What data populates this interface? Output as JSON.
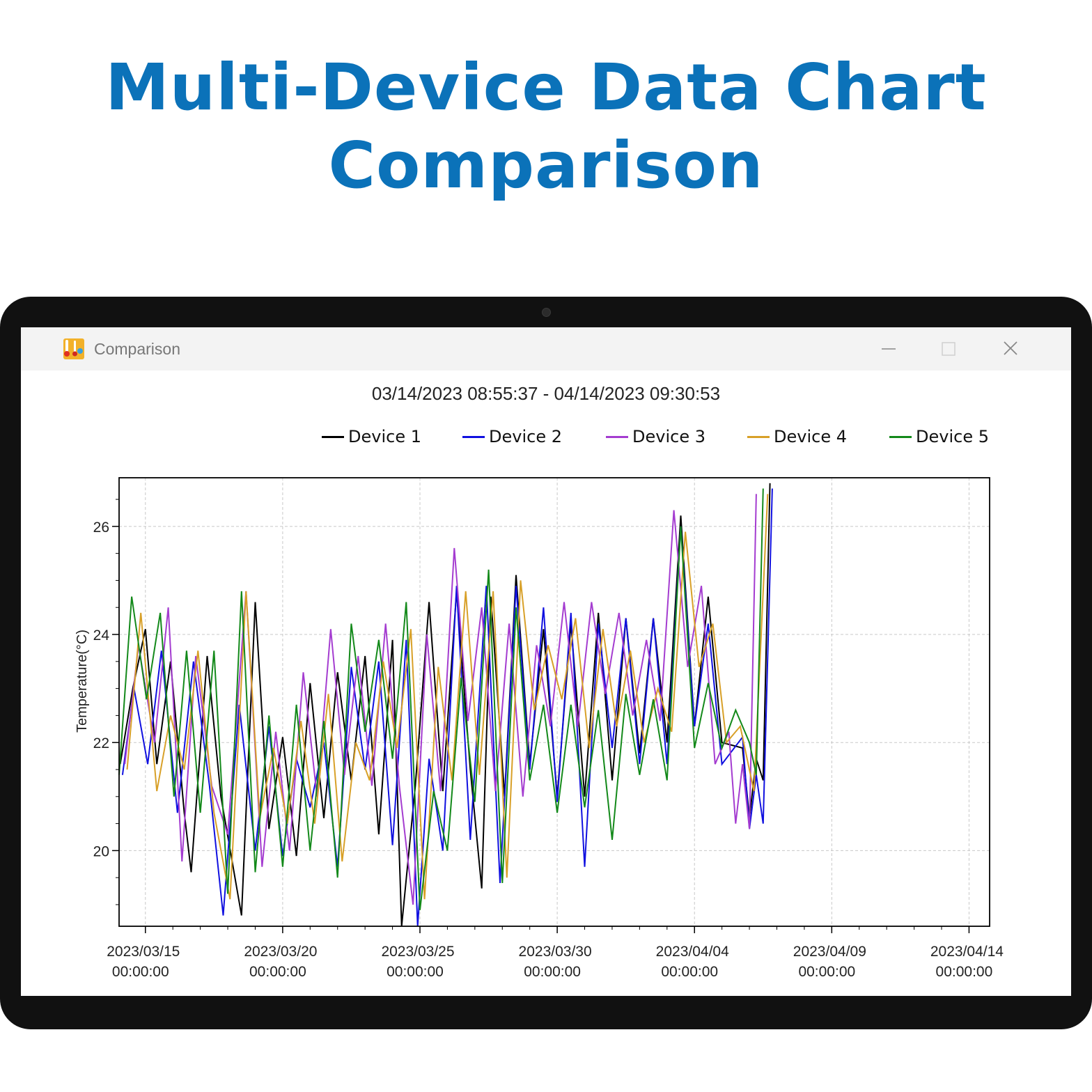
{
  "banner": {
    "title_line1": "Multi-Device Data Chart",
    "title_line2": "Comparison"
  },
  "window": {
    "title": "Comparison",
    "app_icon": "thermometer-app-icon",
    "controls": [
      "minimize-icon",
      "maximize-icon",
      "close-icon"
    ]
  },
  "chart_data": {
    "type": "line",
    "title": "03/14/2023 08:55:37 - 04/14/2023 09:30:53",
    "xlabel": "",
    "ylabel": "Temperature(°C)",
    "xlim": [
      "2023-03-14 01:00",
      "2023-04-14 18:00"
    ],
    "ylim": [
      18.6,
      26.9
    ],
    "grid": true,
    "legend_position": "top",
    "x_ticks": [
      {
        "date": "2023/03/15",
        "time": "00:00:00"
      },
      {
        "date": "2023/03/20",
        "time": "00:00:00"
      },
      {
        "date": "2023/03/25",
        "time": "00:00:00"
      },
      {
        "date": "2023/03/30",
        "time": "00:00:00"
      },
      {
        "date": "2023/04/04",
        "time": "00:00:00"
      },
      {
        "date": "2023/04/09",
        "time": "00:00:00"
      },
      {
        "date": "2023/04/14",
        "time": "00:00:00"
      }
    ],
    "y_ticks": [
      20,
      22,
      24,
      26
    ],
    "series": [
      {
        "name": "Device 1",
        "color": "#000000",
        "points": [
          [
            "2023-03-14 02:00",
            21.6
          ],
          [
            "2023-03-14 13:00",
            23.0
          ],
          [
            "2023-03-15 00:00",
            24.1
          ],
          [
            "2023-03-15 10:00",
            21.6
          ],
          [
            "2023-03-15 22:00",
            23.5
          ],
          [
            "2023-03-16 10:00",
            20.7
          ],
          [
            "2023-03-16 16:00",
            19.6
          ],
          [
            "2023-03-17 06:00",
            23.6
          ],
          [
            "2023-03-17 18:00",
            21.0
          ],
          [
            "2023-03-18 12:00",
            18.8
          ],
          [
            "2023-03-19 00:00",
            24.6
          ],
          [
            "2023-03-19 12:00",
            20.4
          ],
          [
            "2023-03-20 00:00",
            22.1
          ],
          [
            "2023-03-20 12:00",
            19.9
          ],
          [
            "2023-03-21 00:00",
            23.1
          ],
          [
            "2023-03-21 12:00",
            20.6
          ],
          [
            "2023-03-22 00:00",
            23.3
          ],
          [
            "2023-03-22 12:00",
            21.3
          ],
          [
            "2023-03-23 00:00",
            23.6
          ],
          [
            "2023-03-23 12:00",
            20.3
          ],
          [
            "2023-03-24 00:00",
            23.9
          ],
          [
            "2023-03-24 08:00",
            18.6
          ],
          [
            "2023-03-24 20:00",
            21.2
          ],
          [
            "2023-03-25 08:00",
            24.6
          ],
          [
            "2023-03-25 20:00",
            21.1
          ],
          [
            "2023-03-26 08:00",
            24.8
          ],
          [
            "2023-03-26 20:00",
            21.5
          ],
          [
            "2023-03-27 06:00",
            19.3
          ],
          [
            "2023-03-27 14:00",
            24.7
          ],
          [
            "2023-03-28 02:00",
            21.0
          ],
          [
            "2023-03-28 12:00",
            25.1
          ],
          [
            "2023-03-29 00:00",
            21.6
          ],
          [
            "2023-03-29 12:00",
            24.1
          ],
          [
            "2023-03-30 00:00",
            21.0
          ],
          [
            "2023-03-30 12:00",
            24.2
          ],
          [
            "2023-03-31 00:00",
            21.0
          ],
          [
            "2023-03-31 12:00",
            24.4
          ],
          [
            "2023-04-01 00:00",
            21.3
          ],
          [
            "2023-04-01 12:00",
            24.3
          ],
          [
            "2023-04-02 00:00",
            21.8
          ],
          [
            "2023-04-02 12:00",
            24.3
          ],
          [
            "2023-04-03 00:00",
            22.0
          ],
          [
            "2023-04-03 12:00",
            26.2
          ],
          [
            "2023-04-04 00:00",
            22.3
          ],
          [
            "2023-04-04 12:00",
            24.7
          ],
          [
            "2023-04-05 00:00",
            22.0
          ],
          [
            "2023-04-05 18:00",
            21.9
          ],
          [
            "2023-04-06 00:00",
            20.6
          ],
          [
            "2023-04-06 06:00",
            21.7
          ],
          [
            "2023-04-06 12:00",
            21.3
          ],
          [
            "2023-04-06 18:00",
            26.8
          ]
        ]
      },
      {
        "name": "Device 2",
        "color": "#1010e0",
        "points": [
          [
            "2023-03-14 04:00",
            21.4
          ],
          [
            "2023-03-14 14:00",
            23.0
          ],
          [
            "2023-03-15 02:00",
            21.6
          ],
          [
            "2023-03-15 14:00",
            23.7
          ],
          [
            "2023-03-16 04:00",
            20.7
          ],
          [
            "2023-03-16 18:00",
            23.5
          ],
          [
            "2023-03-17 08:00",
            21.2
          ],
          [
            "2023-03-17 20:00",
            18.8
          ],
          [
            "2023-03-18 10:00",
            22.7
          ],
          [
            "2023-03-19 00:00",
            20.0
          ],
          [
            "2023-03-19 12:00",
            22.3
          ],
          [
            "2023-03-20 00:00",
            19.9
          ],
          [
            "2023-03-20 12:00",
            21.7
          ],
          [
            "2023-03-21 00:00",
            20.8
          ],
          [
            "2023-03-21 12:00",
            22.0
          ],
          [
            "2023-03-22 00:00",
            19.7
          ],
          [
            "2023-03-22 12:00",
            23.4
          ],
          [
            "2023-03-23 00:00",
            21.5
          ],
          [
            "2023-03-23 12:00",
            23.5
          ],
          [
            "2023-03-24 00:00",
            20.1
          ],
          [
            "2023-03-24 12:00",
            23.9
          ],
          [
            "2023-03-24 22:00",
            18.6
          ],
          [
            "2023-03-25 08:00",
            21.7
          ],
          [
            "2023-03-25 20:00",
            20.0
          ],
          [
            "2023-03-26 08:00",
            24.9
          ],
          [
            "2023-03-26 20:00",
            20.2
          ],
          [
            "2023-03-27 10:00",
            24.9
          ],
          [
            "2023-03-27 22:00",
            19.4
          ],
          [
            "2023-03-28 12:00",
            24.9
          ],
          [
            "2023-03-29 00:00",
            21.5
          ],
          [
            "2023-03-29 12:00",
            24.5
          ],
          [
            "2023-03-30 00:00",
            20.9
          ],
          [
            "2023-03-30 12:00",
            24.4
          ],
          [
            "2023-03-31 00:00",
            19.7
          ],
          [
            "2023-03-31 12:00",
            24.2
          ],
          [
            "2023-04-01 00:00",
            21.9
          ],
          [
            "2023-04-01 12:00",
            24.3
          ],
          [
            "2023-04-02 00:00",
            21.6
          ],
          [
            "2023-04-02 12:00",
            24.3
          ],
          [
            "2023-04-03 00:00",
            21.6
          ],
          [
            "2023-04-03 12:00",
            26.0
          ],
          [
            "2023-04-04 00:00",
            22.3
          ],
          [
            "2023-04-04 12:00",
            24.2
          ],
          [
            "2023-04-05 00:00",
            21.6
          ],
          [
            "2023-04-05 18:00",
            22.1
          ],
          [
            "2023-04-06 00:00",
            20.4
          ],
          [
            "2023-04-06 06:00",
            21.4
          ],
          [
            "2023-04-06 12:00",
            20.5
          ],
          [
            "2023-04-06 20:00",
            26.7
          ]
        ]
      },
      {
        "name": "Device 3",
        "color": "#a43cd0",
        "points": [
          [
            "2023-03-14 06:00",
            21.6
          ],
          [
            "2023-03-14 18:00",
            23.8
          ],
          [
            "2023-03-15 08:00",
            22.0
          ],
          [
            "2023-03-15 20:00",
            24.5
          ],
          [
            "2023-03-16 08:00",
            19.8
          ],
          [
            "2023-03-16 20:00",
            23.6
          ],
          [
            "2023-03-17 10:00",
            21.2
          ],
          [
            "2023-03-18 00:00",
            20.3
          ],
          [
            "2023-03-18 16:00",
            24.8
          ],
          [
            "2023-03-19 06:00",
            19.7
          ],
          [
            "2023-03-19 18:00",
            22.2
          ],
          [
            "2023-03-20 06:00",
            20.0
          ],
          [
            "2023-03-20 18:00",
            23.3
          ],
          [
            "2023-03-21 06:00",
            21.0
          ],
          [
            "2023-03-21 18:00",
            24.1
          ],
          [
            "2023-03-22 06:00",
            21.4
          ],
          [
            "2023-03-22 18:00",
            23.6
          ],
          [
            "2023-03-23 06:00",
            21.2
          ],
          [
            "2023-03-23 18:00",
            24.2
          ],
          [
            "2023-03-24 06:00",
            21.2
          ],
          [
            "2023-03-24 18:00",
            19.0
          ],
          [
            "2023-03-25 06:00",
            24.0
          ],
          [
            "2023-03-25 18:00",
            21.1
          ],
          [
            "2023-03-26 06:00",
            25.6
          ],
          [
            "2023-03-26 18:00",
            22.4
          ],
          [
            "2023-03-27 06:00",
            24.5
          ],
          [
            "2023-03-27 18:00",
            21.1
          ],
          [
            "2023-03-28 06:00",
            24.2
          ],
          [
            "2023-03-28 18:00",
            21.0
          ],
          [
            "2023-03-29 06:00",
            23.8
          ],
          [
            "2023-03-29 18:00",
            22.3
          ],
          [
            "2023-03-30 06:00",
            24.6
          ],
          [
            "2023-03-30 18:00",
            22.3
          ],
          [
            "2023-03-31 06:00",
            24.6
          ],
          [
            "2023-03-31 18:00",
            22.9
          ],
          [
            "2023-04-01 06:00",
            24.4
          ],
          [
            "2023-04-01 18:00",
            22.5
          ],
          [
            "2023-04-02 06:00",
            23.9
          ],
          [
            "2023-04-02 18:00",
            22.4
          ],
          [
            "2023-04-03 06:00",
            26.3
          ],
          [
            "2023-04-03 18:00",
            23.4
          ],
          [
            "2023-04-04 06:00",
            24.9
          ],
          [
            "2023-04-04 18:00",
            21.6
          ],
          [
            "2023-04-05 06:00",
            22.2
          ],
          [
            "2023-04-05 12:00",
            20.5
          ],
          [
            "2023-04-05 18:00",
            21.6
          ],
          [
            "2023-04-06 00:00",
            20.4
          ],
          [
            "2023-04-06 06:00",
            26.6
          ]
        ]
      },
      {
        "name": "Device 4",
        "color": "#d8a028",
        "points": [
          [
            "2023-03-14 08:00",
            21.5
          ],
          [
            "2023-03-14 20:00",
            24.4
          ],
          [
            "2023-03-15 10:00",
            21.1
          ],
          [
            "2023-03-15 22:00",
            22.5
          ],
          [
            "2023-03-16 10:00",
            21.5
          ],
          [
            "2023-03-16 22:00",
            23.7
          ],
          [
            "2023-03-17 12:00",
            20.7
          ],
          [
            "2023-03-18 02:00",
            19.1
          ],
          [
            "2023-03-18 16:00",
            24.8
          ],
          [
            "2023-03-19 04:00",
            20.6
          ],
          [
            "2023-03-19 16:00",
            21.9
          ],
          [
            "2023-03-20 04:00",
            20.5
          ],
          [
            "2023-03-20 16:00",
            22.4
          ],
          [
            "2023-03-21 04:00",
            20.5
          ],
          [
            "2023-03-21 16:00",
            22.9
          ],
          [
            "2023-03-22 04:00",
            19.8
          ],
          [
            "2023-03-22 16:00",
            22.0
          ],
          [
            "2023-03-23 04:00",
            21.3
          ],
          [
            "2023-03-23 16:00",
            23.5
          ],
          [
            "2023-03-24 04:00",
            21.9
          ],
          [
            "2023-03-24 16:00",
            24.1
          ],
          [
            "2023-03-25 04:00",
            19.1
          ],
          [
            "2023-03-25 16:00",
            23.4
          ],
          [
            "2023-03-26 04:00",
            21.3
          ],
          [
            "2023-03-26 16:00",
            24.8
          ],
          [
            "2023-03-27 04:00",
            21.4
          ],
          [
            "2023-03-27 16:00",
            24.8
          ],
          [
            "2023-03-28 04:00",
            19.5
          ],
          [
            "2023-03-28 16:00",
            25.0
          ],
          [
            "2023-03-29 04:00",
            22.6
          ],
          [
            "2023-03-29 16:00",
            23.8
          ],
          [
            "2023-03-30 04:00",
            22.8
          ],
          [
            "2023-03-30 16:00",
            24.3
          ],
          [
            "2023-03-31 04:00",
            21.9
          ],
          [
            "2023-03-31 16:00",
            24.1
          ],
          [
            "2023-04-01 04:00",
            22.3
          ],
          [
            "2023-04-01 16:00",
            23.7
          ],
          [
            "2023-04-02 04:00",
            22.0
          ],
          [
            "2023-04-02 16:00",
            23.0
          ],
          [
            "2023-04-03 04:00",
            22.2
          ],
          [
            "2023-04-03 16:00",
            25.9
          ],
          [
            "2023-04-04 04:00",
            23.4
          ],
          [
            "2023-04-04 16:00",
            24.2
          ],
          [
            "2023-04-05 04:00",
            22.0
          ],
          [
            "2023-04-05 16:00",
            22.3
          ],
          [
            "2023-04-06 04:00",
            21.1
          ],
          [
            "2023-04-06 16:00",
            26.6
          ]
        ]
      },
      {
        "name": "Device 5",
        "color": "#13891a",
        "points": [
          [
            "2023-03-14 01:00",
            21.4
          ],
          [
            "2023-03-14 12:00",
            24.7
          ],
          [
            "2023-03-15 01:00",
            22.8
          ],
          [
            "2023-03-15 13:00",
            24.4
          ],
          [
            "2023-03-16 01:00",
            21.0
          ],
          [
            "2023-03-16 12:00",
            23.7
          ],
          [
            "2023-03-17 00:00",
            20.7
          ],
          [
            "2023-03-17 12:00",
            23.7
          ],
          [
            "2023-03-18 00:00",
            19.2
          ],
          [
            "2023-03-18 12:00",
            24.8
          ],
          [
            "2023-03-19 00:00",
            19.6
          ],
          [
            "2023-03-19 12:00",
            22.5
          ],
          [
            "2023-03-20 00:00",
            19.7
          ],
          [
            "2023-03-20 12:00",
            22.7
          ],
          [
            "2023-03-21 00:00",
            20.0
          ],
          [
            "2023-03-21 12:00",
            22.4
          ],
          [
            "2023-03-22 00:00",
            19.5
          ],
          [
            "2023-03-22 12:00",
            24.2
          ],
          [
            "2023-03-23 00:00",
            22.2
          ],
          [
            "2023-03-23 12:00",
            23.9
          ],
          [
            "2023-03-24 00:00",
            21.7
          ],
          [
            "2023-03-24 12:00",
            24.6
          ],
          [
            "2023-03-25 00:00",
            18.9
          ],
          [
            "2023-03-25 12:00",
            21.1
          ],
          [
            "2023-03-26 00:00",
            20.0
          ],
          [
            "2023-03-26 12:00",
            23.2
          ],
          [
            "2023-03-27 00:00",
            20.9
          ],
          [
            "2023-03-27 12:00",
            25.2
          ],
          [
            "2023-03-28 00:00",
            19.4
          ],
          [
            "2023-03-28 12:00",
            24.5
          ],
          [
            "2023-03-29 00:00",
            21.3
          ],
          [
            "2023-03-29 12:00",
            22.7
          ],
          [
            "2023-03-30 00:00",
            20.7
          ],
          [
            "2023-03-30 12:00",
            22.7
          ],
          [
            "2023-03-31 00:00",
            20.8
          ],
          [
            "2023-03-31 12:00",
            22.6
          ],
          [
            "2023-04-01 00:00",
            20.2
          ],
          [
            "2023-04-01 12:00",
            22.9
          ],
          [
            "2023-04-02 00:00",
            21.4
          ],
          [
            "2023-04-02 12:00",
            22.8
          ],
          [
            "2023-04-03 00:00",
            21.3
          ],
          [
            "2023-04-03 12:00",
            26.0
          ],
          [
            "2023-04-04 00:00",
            21.9
          ],
          [
            "2023-04-04 12:00",
            23.1
          ],
          [
            "2023-04-05 00:00",
            21.9
          ],
          [
            "2023-04-05 12:00",
            22.6
          ],
          [
            "2023-04-06 00:00",
            22.0
          ],
          [
            "2023-04-06 06:00",
            21.4
          ],
          [
            "2023-04-06 12:00",
            26.7
          ]
        ]
      }
    ]
  }
}
